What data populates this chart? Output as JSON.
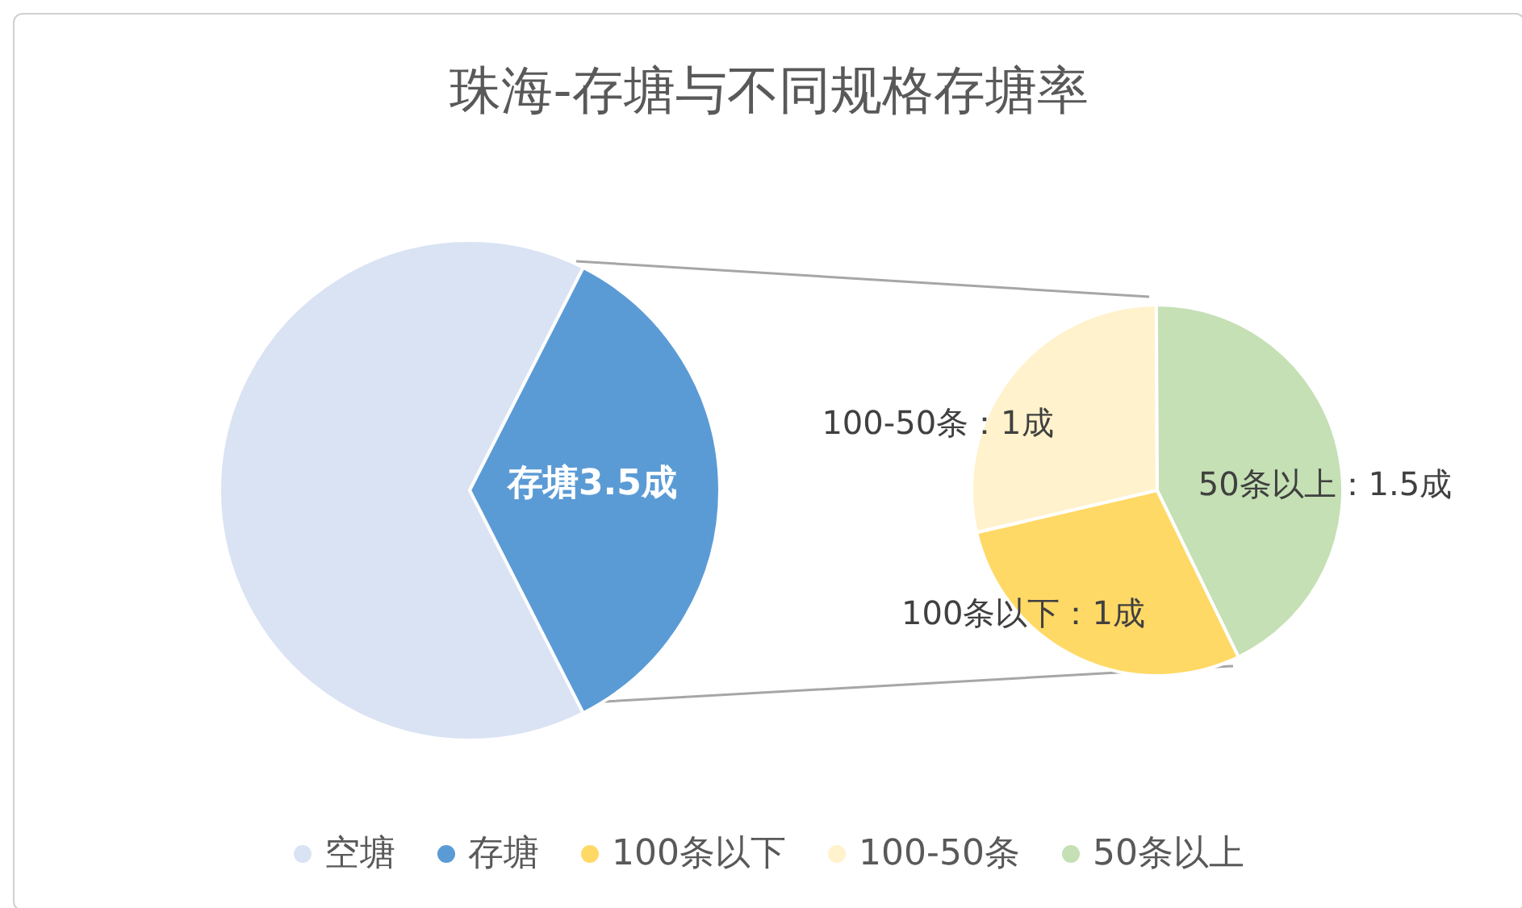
{
  "chart_data": [
    {
      "type": "pie",
      "title": "珠海-存塘与不同规格存塘率",
      "categories": [
        "空塘",
        "存塘"
      ],
      "values": [
        65,
        35
      ],
      "colors": [
        "#dae3f3",
        "#5b9bd5"
      ],
      "value_labels": [
        null,
        "存塘3.5成"
      ],
      "legend": "bottom"
    },
    {
      "type": "pie",
      "categories": [
        "100条以下",
        "100-50条",
        "50条以上"
      ],
      "values": [
        1,
        1,
        1.5
      ],
      "colors": [
        "#ffd966",
        "#fff2cc",
        "#c5e0b4"
      ],
      "value_labels": [
        "100条以下：1成",
        "100-50条：1成",
        "50条以上：1.5成"
      ],
      "legend": "bottom"
    }
  ]
}
